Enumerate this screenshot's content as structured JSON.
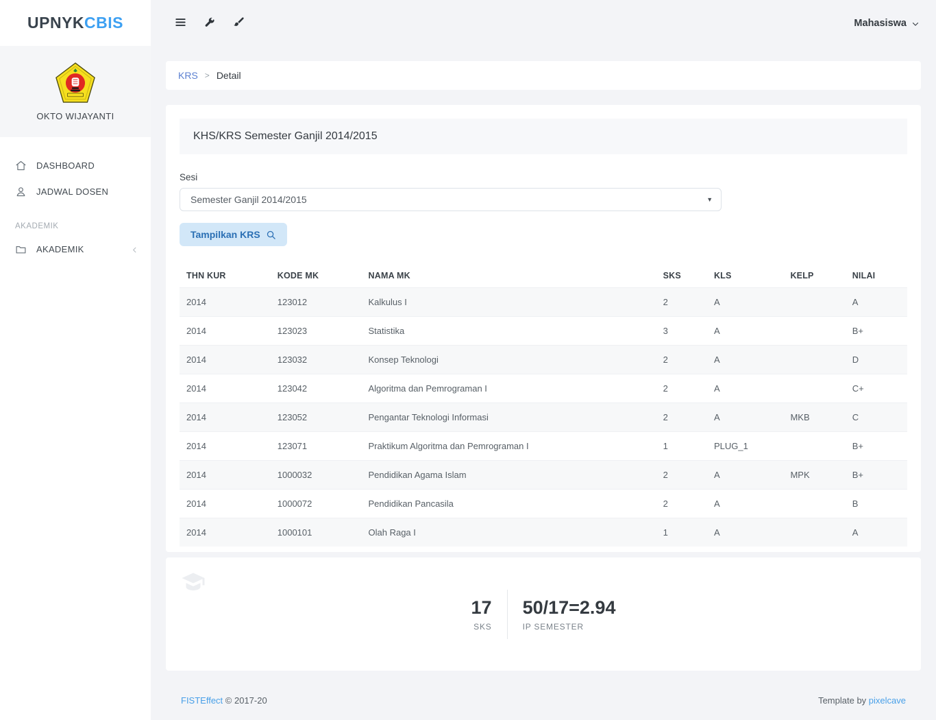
{
  "brand": {
    "name_primary": "UPNYK",
    "name_accent": "CBIS"
  },
  "user": {
    "name": "OKTO WIJAYANTI",
    "role": "Mahasiswa"
  },
  "sidebar": {
    "items": [
      {
        "label": "DASHBOARD",
        "icon": "home-icon"
      },
      {
        "label": "JADWAL DOSEN",
        "icon": "user-icon"
      }
    ],
    "section_heading": "AKADEMIK",
    "collapsible_item": {
      "label": "AKADEMIK",
      "icon": "folder-icon"
    }
  },
  "breadcrumb": {
    "link": "KRS",
    "separator": ">",
    "current": "Detail"
  },
  "page": {
    "card_title": "KHS/KRS Semester Ganjil 2014/2015",
    "session_label": "Sesi",
    "session_value": "Semester Ganjil 2014/2015",
    "show_button_label": "Tampilkan KRS"
  },
  "table": {
    "columns": [
      "THN KUR",
      "KODE MK",
      "NAMA MK",
      "SKS",
      "KLS",
      "KELP",
      "NILAI"
    ],
    "rows": [
      [
        "2014",
        "123012",
        "Kalkulus I",
        "2",
        "A",
        "",
        "A"
      ],
      [
        "2014",
        "123023",
        "Statistika",
        "3",
        "A",
        "",
        "B+"
      ],
      [
        "2014",
        "123032",
        "Konsep Teknologi",
        "2",
        "A",
        "",
        "D"
      ],
      [
        "2014",
        "123042",
        "Algoritma dan Pemrograman I",
        "2",
        "A",
        "",
        "C+"
      ],
      [
        "2014",
        "123052",
        "Pengantar Teknologi Informasi",
        "2",
        "A",
        "MKB",
        "C"
      ],
      [
        "2014",
        "123071",
        "Praktikum Algoritma dan Pemrograman I",
        "1",
        "PLUG_1",
        "",
        "B+"
      ],
      [
        "2014",
        "1000032",
        "Pendidikan Agama Islam",
        "2",
        "A",
        "MPK",
        "B+"
      ],
      [
        "2014",
        "1000072",
        "Pendidikan Pancasila",
        "2",
        "A",
        "",
        "B"
      ],
      [
        "2014",
        "1000101",
        "Olah Raga I",
        "1",
        "A",
        "",
        "A"
      ]
    ]
  },
  "summary": {
    "sks_value": "17",
    "sks_label": "SKS",
    "ip_value": "50/17=2.94",
    "ip_label": "IP SEMESTER"
  },
  "footer": {
    "left_link": "FISTEffect",
    "left_text": "© 2017-20",
    "right_text": "Template by",
    "right_link": "pixelcave"
  },
  "colors": {
    "page_bg": "#f3f4f7",
    "accent_blue": "#3da0f2",
    "breadcrumb_link": "#5c80d1",
    "button_bg": "#d2e7f8",
    "button_text": "#2a6fb4",
    "footer_link": "#479fe8",
    "emblem_yellow": "#f6df1e",
    "emblem_red": "#e02a22"
  }
}
